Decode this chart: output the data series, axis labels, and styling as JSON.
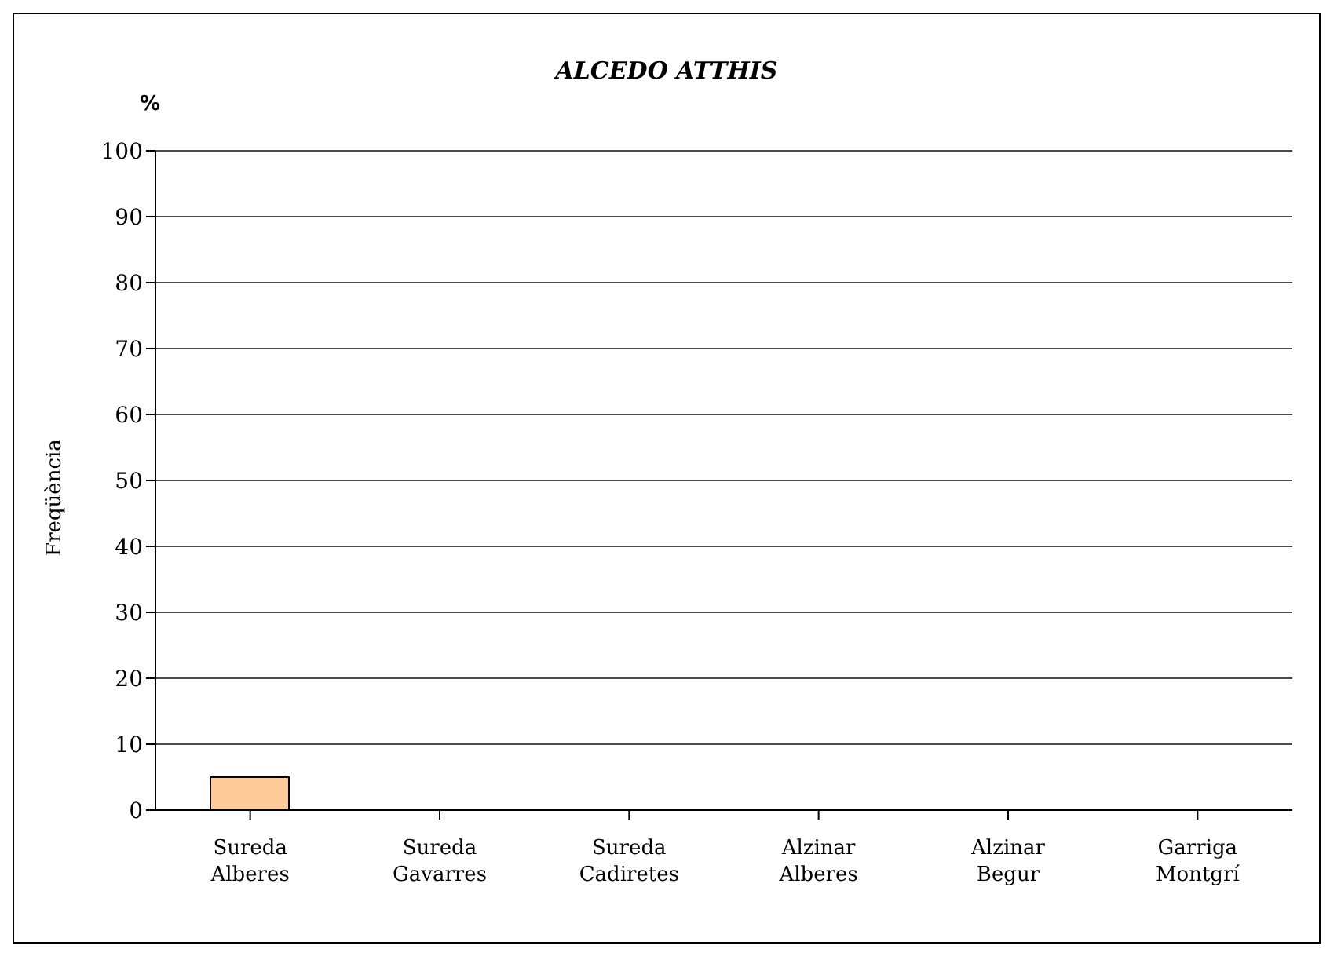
{
  "chart_data": {
    "type": "bar",
    "title": "ALCEDO ATTHIS",
    "ylabel": "Freqüència",
    "annotations": [
      "%"
    ],
    "categories": [
      "Sureda Alberes",
      "Sureda Gavarres",
      "Sureda Cadiretes",
      "Alzinar Alberes",
      "Alzinar Begur",
      "Garriga Montgrí"
    ],
    "values": [
      5,
      0,
      0,
      0,
      0,
      0
    ],
    "color": "#ffcc99",
    "ylim": [
      0,
      100
    ],
    "yticks": [
      0,
      10,
      20,
      30,
      40,
      50,
      60,
      70,
      80,
      90,
      100
    ],
    "grid": "y"
  }
}
